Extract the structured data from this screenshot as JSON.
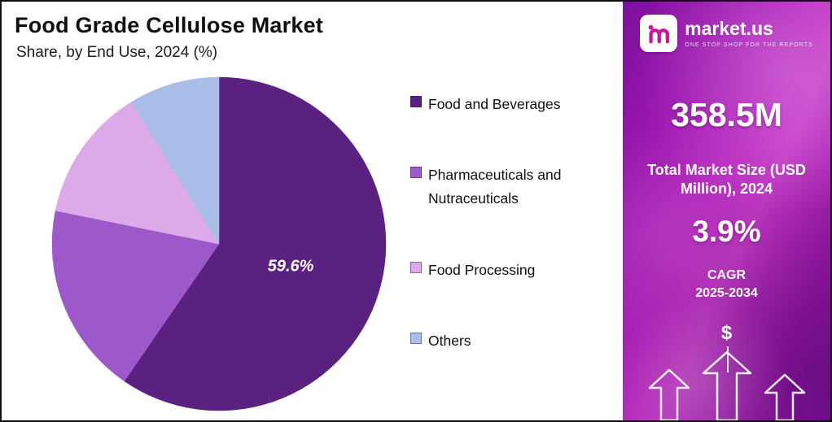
{
  "header": {
    "title": "Food Grade Cellulose Market",
    "subtitle": "Share, by End Use, 2024 (%)"
  },
  "chart_data": {
    "type": "pie",
    "title": "Food Grade Cellulose Market",
    "subtitle": "Share, by End Use, 2024 (%)",
    "unit": "%",
    "labels": [
      "Food and Beverages",
      "Pharmaceuticals and Nutraceuticals",
      "Food Processing",
      "Others"
    ],
    "values": [
      59.6,
      18.6,
      13.0,
      8.8
    ],
    "colors": [
      "#5b2180",
      "#9d59c9",
      "#dcaae9",
      "#a9bde6"
    ],
    "labeled_values": [
      "59.6%",
      null,
      null,
      null
    ],
    "annotations": [
      {
        "text": "59.6%",
        "slice": "Food and Beverages"
      }
    ],
    "start_angle": "top",
    "direction": "clockwise",
    "legend_position": "right"
  },
  "legend": {
    "items": [
      {
        "label": "Food and Beverages",
        "color": "#5b2180"
      },
      {
        "label": "Pharmaceuticals and Nutraceuticals",
        "color": "#9d59c9"
      },
      {
        "label": "Food Processing",
        "color": "#dcaae9"
      },
      {
        "label": "Others",
        "color": "#a9bde6"
      }
    ]
  },
  "sidebar": {
    "brand": {
      "name": "market.us",
      "tagline": "ONE STOP SHOP FOR THE REPORTS"
    },
    "market_size_value": "358.5M",
    "market_size_label": "Total Market Size (USD Million), 2024",
    "cagr_value": "3.9%",
    "cagr_label": "CAGR",
    "cagr_period": "2025-2034",
    "dollar_symbol": "$",
    "accent_color": "#b825c0"
  }
}
